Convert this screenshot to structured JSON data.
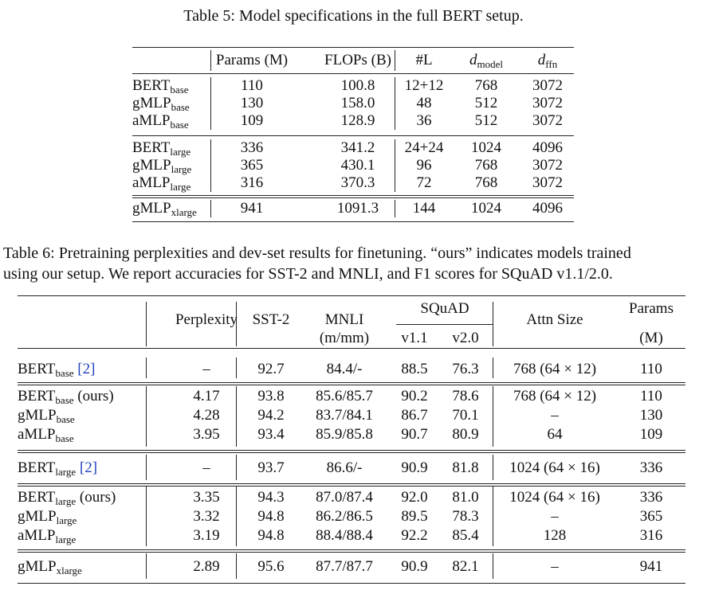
{
  "table5": {
    "caption": "Table 5: Model specifications in the full BERT setup.",
    "headers": {
      "params": "Params (M)",
      "flops": "FLOPs (B)",
      "layers": "#L",
      "d_model_main": "d",
      "d_model_sub": "model",
      "d_ffn_main": "d",
      "d_ffn_sub": "ffn"
    },
    "rows": [
      {
        "model": "BERT",
        "sub": "base",
        "params": "110",
        "flops": "100.8",
        "layers": "12+12",
        "d_model": "768",
        "d_ffn": "3072"
      },
      {
        "model": "gMLP",
        "sub": "base",
        "params": "130",
        "flops": "158.0",
        "layers": "48",
        "d_model": "512",
        "d_ffn": "3072"
      },
      {
        "model": "aMLP",
        "sub": "base",
        "params": "109",
        "flops": "128.9",
        "layers": "36",
        "d_model": "512",
        "d_ffn": "3072"
      },
      {
        "model": "BERT",
        "sub": "large",
        "params": "336",
        "flops": "341.2",
        "layers": "24+24",
        "d_model": "1024",
        "d_ffn": "4096"
      },
      {
        "model": "gMLP",
        "sub": "large",
        "params": "365",
        "flops": "430.1",
        "layers": "96",
        "d_model": "768",
        "d_ffn": "3072"
      },
      {
        "model": "aMLP",
        "sub": "large",
        "params": "316",
        "flops": "370.3",
        "layers": "72",
        "d_model": "768",
        "d_ffn": "3072"
      },
      {
        "model": "gMLP",
        "sub": "xlarge",
        "params": "941",
        "flops": "1091.3",
        "layers": "144",
        "d_model": "1024",
        "d_ffn": "4096"
      }
    ]
  },
  "table6": {
    "caption_line1": "Table 6: Pretraining perplexities and dev-set results for finetuning. “ours” indicates models trained",
    "caption_line2": "using our setup. We report accuracies for SST-2 and MNLI, and F1 scores for SQuAD v1.1/2.0.",
    "headers": {
      "perplexity": "Perplexity",
      "sst2": "SST-2",
      "mnli": "MNLI",
      "mnli_unit": "(m/mm)",
      "squad": "SQuAD",
      "squad_v11": "v1.1",
      "squad_v20": "v2.0",
      "attn": "Attn Size",
      "params": "Params",
      "params_unit": "(M)"
    },
    "rows": [
      {
        "model": "BERT",
        "sub": "base",
        "suffix": "",
        "ref": "[2]",
        "ppl": "–",
        "sst2": "92.7",
        "mnli": "84.4/-",
        "v11": "88.5",
        "v20": "76.3",
        "attn": "768 (64 × 12)",
        "params": "110"
      },
      {
        "model": "BERT",
        "sub": "base",
        "suffix": " (ours)",
        "ref": "",
        "ppl": "4.17",
        "sst2": "93.8",
        "mnli": "85.6/85.7",
        "v11": "90.2",
        "v20": "78.6",
        "attn": "768 (64 × 12)",
        "params": "110"
      },
      {
        "model": "gMLP",
        "sub": "base",
        "suffix": "",
        "ref": "",
        "ppl": "4.28",
        "sst2": "94.2",
        "mnli": "83.7/84.1",
        "v11": "86.7",
        "v20": "70.1",
        "attn": "–",
        "params": "130"
      },
      {
        "model": "aMLP",
        "sub": "base",
        "suffix": "",
        "ref": "",
        "ppl": "3.95",
        "sst2": "93.4",
        "mnli": "85.9/85.8",
        "v11": "90.7",
        "v20": "80.9",
        "attn": "64",
        "params": "109"
      },
      {
        "model": "BERT",
        "sub": "large",
        "suffix": "",
        "ref": "[2]",
        "ppl": "–",
        "sst2": "93.7",
        "mnli": "86.6/-",
        "v11": "90.9",
        "v20": "81.8",
        "attn": "1024 (64 × 16)",
        "params": "336"
      },
      {
        "model": "BERT",
        "sub": "large",
        "suffix": " (ours)",
        "ref": "",
        "ppl": "3.35",
        "sst2": "94.3",
        "mnli": "87.0/87.4",
        "v11": "92.0",
        "v20": "81.0",
        "attn": "1024 (64 × 16)",
        "params": "336"
      },
      {
        "model": "gMLP",
        "sub": "large",
        "suffix": "",
        "ref": "",
        "ppl": "3.32",
        "sst2": "94.8",
        "mnli": "86.2/86.5",
        "v11": "89.5",
        "v20": "78.3",
        "attn": "–",
        "params": "365"
      },
      {
        "model": "aMLP",
        "sub": "large",
        "suffix": "",
        "ref": "",
        "ppl": "3.19",
        "sst2": "94.8",
        "mnli": "88.4/88.4",
        "v11": "92.2",
        "v20": "85.4",
        "attn": "128",
        "params": "316"
      },
      {
        "model": "gMLP",
        "sub": "xlarge",
        "suffix": "",
        "ref": "",
        "ppl": "2.89",
        "sst2": "95.6",
        "mnli": "87.7/87.7",
        "v11": "90.9",
        "v20": "82.1",
        "attn": "–",
        "params": "941"
      }
    ]
  }
}
